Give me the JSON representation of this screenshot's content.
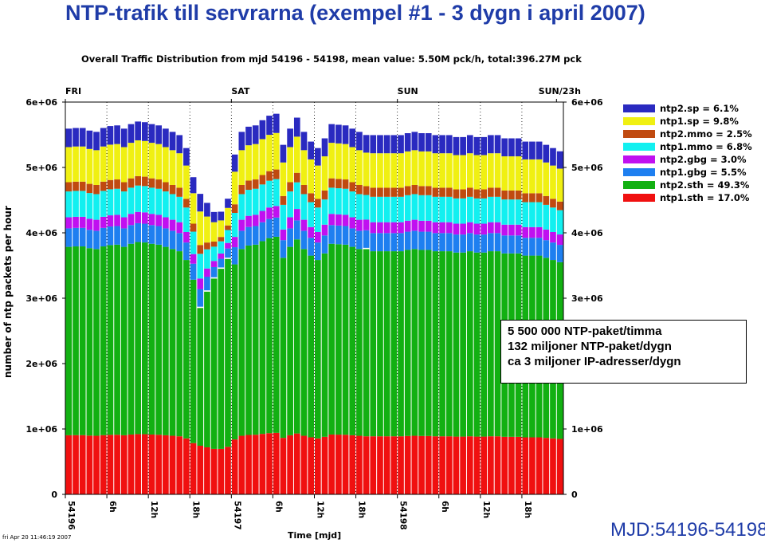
{
  "page_title": "NTP-trafik till servrarna (exempel #1 -  3 dygn i april 2007)",
  "callout": {
    "line1": "5 500 000 NTP-paket/timma",
    "line2": "132 miljoner NTP-paket/dygn",
    "line3": "ca 3 miljoner IP-adresser/dygn"
  },
  "mjd_label": "MJD:54196-54198",
  "timestamp": "fri Apr 20 11:46:19 2007",
  "chart_data": {
    "type": "bar",
    "stacked": true,
    "title": "Overall Traffic Distribution from mjd 54196 - 54198, mean value: 5.50M pck/h, total:396.27M pck",
    "xlabel": "Time [mjd]",
    "ylabel": "number of ntp packets per hour",
    "ylim": [
      0,
      6000000
    ],
    "xlim": [
      0,
      72
    ],
    "yticks": [
      {
        "value": 0,
        "label": "0"
      },
      {
        "value": 1000000,
        "label": "1e+06"
      },
      {
        "value": 2000000,
        "label": "2e+06"
      },
      {
        "value": 3000000,
        "label": "3e+06"
      },
      {
        "value": 4000000,
        "label": "4e+06"
      },
      {
        "value": 5000000,
        "label": "5e+06"
      },
      {
        "value": 6000000,
        "label": "6e+06"
      }
    ],
    "xticks": [
      {
        "hour": 0,
        "label": "54196"
      },
      {
        "hour": 6,
        "label": "6h"
      },
      {
        "hour": 12,
        "label": "12h"
      },
      {
        "hour": 18,
        "label": "18h"
      },
      {
        "hour": 24,
        "label": "54197"
      },
      {
        "hour": 30,
        "label": "6h"
      },
      {
        "hour": 36,
        "label": "12h"
      },
      {
        "hour": 42,
        "label": "18h"
      },
      {
        "hour": 48,
        "label": "54198"
      },
      {
        "hour": 54,
        "label": "6h"
      },
      {
        "hour": 60,
        "label": "12h"
      },
      {
        "hour": 66,
        "label": "18h"
      }
    ],
    "top_labels": [
      {
        "hour": 0,
        "label": "FRI"
      },
      {
        "hour": 24,
        "label": "SAT"
      },
      {
        "hour": 48,
        "label": "SUN"
      },
      {
        "hour": 71,
        "label": "SUN/23h"
      }
    ],
    "grid": "vertical dotted at 6h",
    "legend_position": "right",
    "series": [
      {
        "name": "ntp1.sth = 17.0%",
        "color": "#f01010"
      },
      {
        "name": "ntp2.sth = 49.3%",
        "color": "#12b012"
      },
      {
        "name": "ntp1.gbg = 5.5%",
        "color": "#1e7ff0"
      },
      {
        "name": "ntp2.gbg = 3.0%",
        "color": "#c010f0"
      },
      {
        "name": "ntp1.mmo = 6.8%",
        "color": "#12f0f0"
      },
      {
        "name": "ntp2.mmo = 2.5%",
        "color": "#c04a10"
      },
      {
        "name": "ntp1.sp = 9.8%",
        "color": "#f0f012"
      },
      {
        "name": "ntp2.sp = 6.1%",
        "color": "#2a2ac0"
      }
    ],
    "legend_order": [
      7,
      6,
      5,
      4,
      3,
      2,
      1,
      0
    ],
    "segment_fractions": [
      0.16,
      0.51,
      0.05,
      0.03,
      0.07,
      0.025,
      0.095,
      0.05
    ],
    "hourly_totals": [
      5.65,
      5.66,
      5.66,
      5.62,
      5.6,
      5.66,
      5.69,
      5.7,
      5.65,
      5.72,
      5.76,
      5.75,
      5.72,
      5.7,
      5.65,
      5.6,
      5.55,
      5.35,
      4.9,
      4.65,
      4.5,
      4.35,
      4.35,
      4.55,
      5.25,
      5.6,
      5.68,
      5.7,
      5.78,
      5.85,
      5.88,
      5.4,
      5.65,
      5.82,
      5.6,
      5.45,
      5.35,
      5.5,
      5.72,
      5.71,
      5.7,
      5.65,
      5.6,
      5.55,
      5.55,
      5.55,
      5.55,
      5.55,
      5.55,
      5.58,
      5.6,
      5.58,
      5.58,
      5.55,
      5.55,
      5.55,
      5.52,
      5.52,
      5.55,
      5.52,
      5.52,
      5.55,
      5.55,
      5.5,
      5.5,
      5.5,
      5.45,
      5.45,
      5.45,
      5.4,
      5.35,
      5.3
    ],
    "unit_multiplier": 1000000,
    "dips": [
      {
        "hour": 19,
        "bottom_values": [
          2.85,
          2.0
        ]
      },
      {
        "hour": 20,
        "bottom_values": [
          3.1,
          2.55
        ]
      },
      {
        "hour": 21,
        "bottom_values": [
          3.3,
          2.75
        ]
      },
      {
        "hour": 22,
        "bottom_values": [
          3.45,
          2.9
        ]
      },
      {
        "hour": 23,
        "bottom_values": [
          3.6,
          3.1
        ]
      },
      {
        "hour": 43,
        "bottom_values": [
          3.75,
          3.3
        ]
      }
    ]
  }
}
